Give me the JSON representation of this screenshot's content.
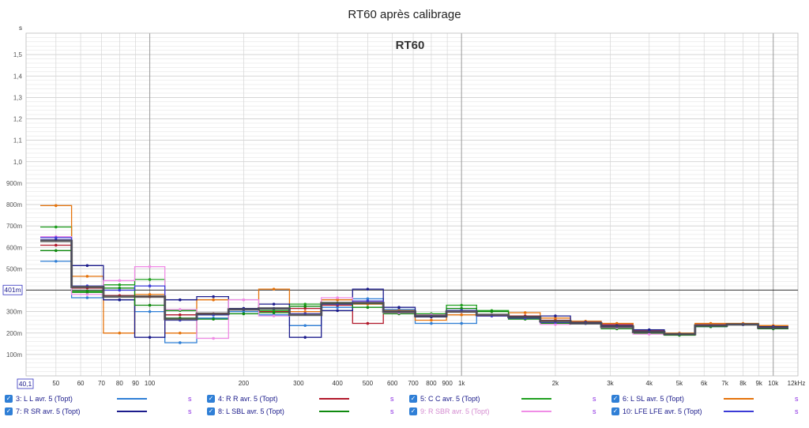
{
  "chart_data": {
    "type": "line",
    "title": "RT60 après calibrage",
    "watermark": "RT60",
    "y_unit": "s",
    "x_unit": "kHz",
    "x_scale": "log",
    "xlim": [
      40.1,
      12000
    ],
    "ylim": [
      0,
      1.6
    ],
    "x_corner_value": "40,1",
    "cursor_value": "401m",
    "cursor_y": 0.401,
    "y_ticks": [
      {
        "v": 0.1,
        "label": "100m"
      },
      {
        "v": 0.2,
        "label": "200m"
      },
      {
        "v": 0.3,
        "label": "300m"
      },
      {
        "v": 0.4,
        "label": "400m"
      },
      {
        "v": 0.5,
        "label": "500m"
      },
      {
        "v": 0.6,
        "label": "600m"
      },
      {
        "v": 0.7,
        "label": "700m"
      },
      {
        "v": 0.8,
        "label": "800m"
      },
      {
        "v": 0.9,
        "label": "900m"
      },
      {
        "v": 1.0,
        "label": "1,0"
      },
      {
        "v": 1.1,
        "label": "1,1"
      },
      {
        "v": 1.2,
        "label": "1,2"
      },
      {
        "v": 1.3,
        "label": "1,3"
      },
      {
        "v": 1.4,
        "label": "1,4"
      },
      {
        "v": 1.5,
        "label": "1,5"
      }
    ],
    "x_ticks": [
      {
        "v": 50,
        "label": "50"
      },
      {
        "v": 60,
        "label": "60"
      },
      {
        "v": 70,
        "label": "70"
      },
      {
        "v": 80,
        "label": "80"
      },
      {
        "v": 90,
        "label": "90"
      },
      {
        "v": 100,
        "label": "100"
      },
      {
        "v": 200,
        "label": "200"
      },
      {
        "v": 300,
        "label": "300"
      },
      {
        "v": 400,
        "label": "400"
      },
      {
        "v": 500,
        "label": "500"
      },
      {
        "v": 600,
        "label": "600"
      },
      {
        "v": 700,
        "label": "700"
      },
      {
        "v": 800,
        "label": "800"
      },
      {
        "v": 900,
        "label": "900"
      },
      {
        "v": 1000,
        "label": "1k"
      },
      {
        "v": 2000,
        "label": "2k"
      },
      {
        "v": 3000,
        "label": "3k"
      },
      {
        "v": 4000,
        "label": "4k"
      },
      {
        "v": 5000,
        "label": "5k"
      },
      {
        "v": 6000,
        "label": "6k"
      },
      {
        "v": 7000,
        "label": "7k"
      },
      {
        "v": 8000,
        "label": "8k"
      },
      {
        "v": 9000,
        "label": "9k"
      },
      {
        "v": 10000,
        "label": "10k"
      },
      {
        "v": 12000,
        "label": "12kHz"
      }
    ],
    "bands_hz": [
      50,
      63,
      80,
      100,
      125,
      160,
      200,
      250,
      315,
      400,
      500,
      630,
      800,
      1000,
      1250,
      1600,
      2000,
      2500,
      3150,
      4000,
      5000,
      6300,
      8000,
      10000
    ],
    "series": [
      {
        "name": "3: L L avr. 5 (Topt)",
        "color": "#2f7fd6",
        "values": [
          0.535,
          0.365,
          0.355,
          0.3,
          0.155,
          0.27,
          0.3,
          0.285,
          0.235,
          0.32,
          0.36,
          0.31,
          0.245,
          0.245,
          0.28,
          0.27,
          0.25,
          0.245,
          0.225,
          0.205,
          0.195,
          0.23,
          0.24,
          0.225
        ]
      },
      {
        "name": "4: R R avr. 5 (Topt)",
        "color": "#b2182b",
        "values": [
          0.61,
          0.41,
          0.375,
          0.37,
          0.285,
          0.29,
          0.31,
          0.3,
          0.315,
          0.33,
          0.245,
          0.3,
          0.28,
          0.3,
          0.28,
          0.28,
          0.26,
          0.25,
          0.24,
          0.21,
          0.195,
          0.24,
          0.24,
          0.225
        ]
      },
      {
        "name": "5: C C avr. 5 (Topt)",
        "color": "#1fa01f",
        "values": [
          0.695,
          0.395,
          0.425,
          0.45,
          0.305,
          0.285,
          0.31,
          0.305,
          0.335,
          0.34,
          0.34,
          0.295,
          0.29,
          0.33,
          0.305,
          0.275,
          0.25,
          0.245,
          0.225,
          0.205,
          0.195,
          0.235,
          0.24,
          0.225
        ]
      },
      {
        "name": "6: L SL avr. 5 (Topt)",
        "color": "#e5730b",
        "values": [
          0.795,
          0.465,
          0.2,
          0.38,
          0.2,
          0.355,
          0.31,
          0.405,
          0.3,
          0.355,
          0.335,
          0.305,
          0.26,
          0.285,
          0.285,
          0.295,
          0.27,
          0.255,
          0.245,
          0.205,
          0.2,
          0.245,
          0.245,
          0.235
        ]
      },
      {
        "name": "7: R SR avr. 5 (Topt)",
        "color": "#1c1c8c",
        "values": [
          0.635,
          0.515,
          0.355,
          0.18,
          0.355,
          0.37,
          0.315,
          0.335,
          0.18,
          0.305,
          0.405,
          0.32,
          0.275,
          0.305,
          0.285,
          0.275,
          0.28,
          0.25,
          0.235,
          0.215,
          0.195,
          0.23,
          0.24,
          0.23
        ]
      },
      {
        "name": "8: L SBL avr. 5 (Topt)",
        "color": "#0f8a0f",
        "values": [
          0.585,
          0.39,
          0.41,
          0.33,
          0.27,
          0.265,
          0.29,
          0.295,
          0.325,
          0.335,
          0.32,
          0.29,
          0.285,
          0.315,
          0.3,
          0.265,
          0.245,
          0.245,
          0.22,
          0.2,
          0.19,
          0.23,
          0.24,
          0.22
        ]
      },
      {
        "name": "9: R SBR avr. 5 (Topt)",
        "color": "#f08de6",
        "values": [
          0.65,
          0.38,
          0.445,
          0.51,
          0.31,
          0.175,
          0.355,
          0.28,
          0.29,
          0.365,
          0.345,
          0.295,
          0.285,
          0.3,
          0.285,
          0.27,
          0.24,
          0.245,
          0.225,
          0.195,
          0.195,
          0.235,
          0.24,
          0.225
        ]
      },
      {
        "name": "10: LFE LFE avr. 5 (Topt)",
        "color": "#3b3bd6",
        "values": [
          0.645,
          0.42,
          0.4,
          0.42,
          0.26,
          0.285,
          0.31,
          0.315,
          0.29,
          0.335,
          0.35,
          0.3,
          0.28,
          0.305,
          0.28,
          0.27,
          0.25,
          0.245,
          0.23,
          0.205,
          0.195,
          0.235,
          0.24,
          0.225
        ]
      }
    ],
    "average": {
      "color": "#4a4a4a",
      "values": [
        0.63,
        0.415,
        0.37,
        0.37,
        0.265,
        0.29,
        0.31,
        0.315,
        0.285,
        0.34,
        0.34,
        0.3,
        0.28,
        0.3,
        0.285,
        0.275,
        0.255,
        0.245,
        0.23,
        0.205,
        0.195,
        0.235,
        0.24,
        0.225
      ]
    }
  },
  "legend": {
    "unit_label": "s",
    "items": [
      {
        "label": "3: L L avr. 5 (Topt)",
        "color": "#2f7fd6"
      },
      {
        "label": "4: R R avr. 5 (Topt)",
        "color": "#b2182b"
      },
      {
        "label": "5: C C avr. 5 (Topt)",
        "color": "#1fa01f"
      },
      {
        "label": "6: L SL avr. 5 (Topt)",
        "color": "#e5730b"
      },
      {
        "label": "7: R SR avr. 5 (Topt)",
        "color": "#1c1c8c"
      },
      {
        "label": "8: L SBL avr. 5 (Topt)",
        "color": "#0f8a0f"
      },
      {
        "label": "9: R SBR avr. 5 (Topt)",
        "color": "#f08de6"
      },
      {
        "label": "10: LFE LFE avr. 5 (Topt)",
        "color": "#3b3bd6"
      }
    ]
  }
}
